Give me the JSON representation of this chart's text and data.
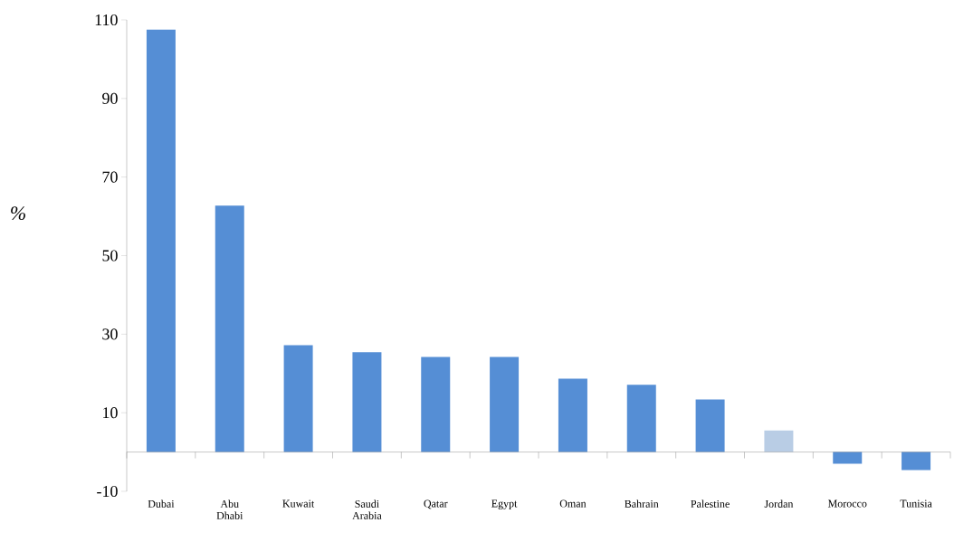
{
  "chart_data": {
    "type": "bar",
    "ylabel": "%",
    "categories": [
      "Dubai",
      "Abu Dhabi",
      "Kuwait",
      "Saudi Arabia",
      "Qatar",
      "Egypt",
      "Oman",
      "Bahrain",
      "Palestine",
      "Jordan",
      "Morocco",
      "Tunisia"
    ],
    "values": [
      107.5,
      62.7,
      27.2,
      25.4,
      24.2,
      24.2,
      18.7,
      17.1,
      13.4,
      5.5,
      -3,
      -4.6
    ],
    "colors": [
      "#558ed5",
      "#558ed5",
      "#558ed5",
      "#558ed5",
      "#558ed5",
      "#558ed5",
      "#558ed5",
      "#558ed5",
      "#558ed5",
      "#b9cde5",
      "#558ed5",
      "#558ed5"
    ],
    "ylim": [
      -10,
      110
    ],
    "yticks": [
      -10,
      10,
      30,
      50,
      70,
      90,
      110
    ],
    "grid": false
  }
}
